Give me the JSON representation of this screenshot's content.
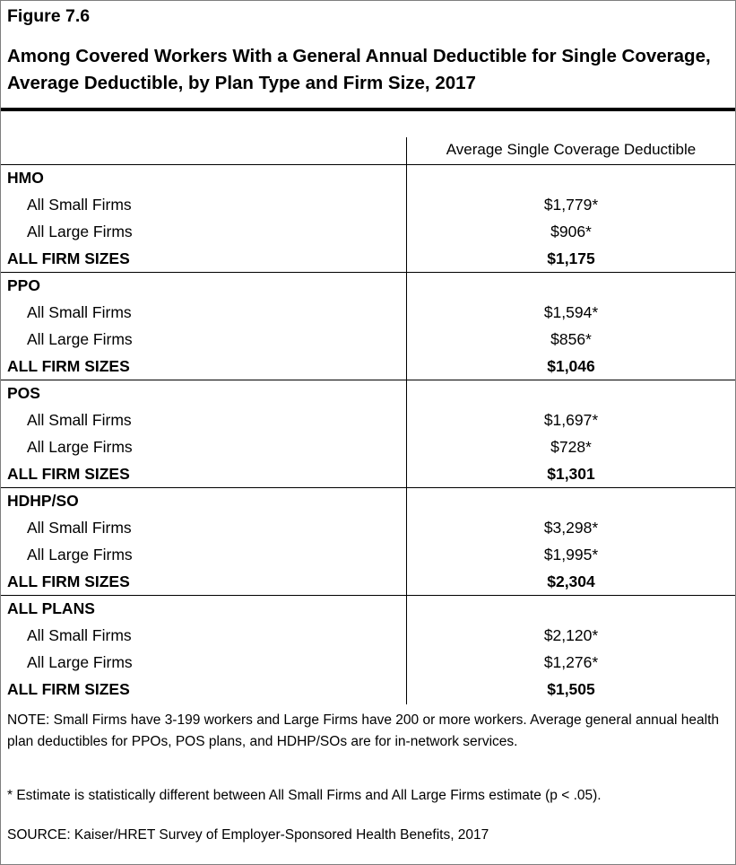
{
  "figure_number": "Figure 7.6",
  "chart_data": {
    "type": "table",
    "title": "Among Covered Workers With a General Annual Deductible for Single Coverage, Average Deductible, by Plan Type and Firm Size, 2017",
    "column_header": "Average Single Coverage Deductible",
    "groups": [
      {
        "name": "HMO",
        "rows": [
          {
            "label": "All Small Firms",
            "value": "$1,779*"
          },
          {
            "label": "All Large Firms",
            "value": "$906*"
          },
          {
            "label": "ALL FIRM SIZES",
            "value": "$1,175"
          }
        ]
      },
      {
        "name": "PPO",
        "rows": [
          {
            "label": "All Small Firms",
            "value": "$1,594*"
          },
          {
            "label": "All Large Firms",
            "value": "$856*"
          },
          {
            "label": "ALL FIRM SIZES",
            "value": "$1,046"
          }
        ]
      },
      {
        "name": "POS",
        "rows": [
          {
            "label": "All Small Firms",
            "value": "$1,697*"
          },
          {
            "label": "All Large Firms",
            "value": "$728*"
          },
          {
            "label": "ALL FIRM SIZES",
            "value": "$1,301"
          }
        ]
      },
      {
        "name": "HDHP/SO",
        "rows": [
          {
            "label": "All Small Firms",
            "value": "$3,298*"
          },
          {
            "label": "All Large Firms",
            "value": "$1,995*"
          },
          {
            "label": "ALL FIRM SIZES",
            "value": "$2,304"
          }
        ]
      },
      {
        "name": "ALL PLANS",
        "rows": [
          {
            "label": "All Small Firms",
            "value": "$2,120*"
          },
          {
            "label": "All Large Firms",
            "value": "$1,276*"
          },
          {
            "label": "ALL FIRM SIZES",
            "value": "$1,505"
          }
        ]
      }
    ]
  },
  "notes": {
    "note": "NOTE: Small Firms have 3-199 workers and Large Firms have 200 or more workers. Average general annual health plan deductibles for PPOs, POS plans, and HDHP/SOs are for in-network services.",
    "asterisk": "* Estimate is statistically different between All Small Firms and All Large Firms estimate (p < .05).",
    "source": "SOURCE: Kaiser/HRET Survey of Employer-Sponsored Health Benefits, 2017"
  }
}
